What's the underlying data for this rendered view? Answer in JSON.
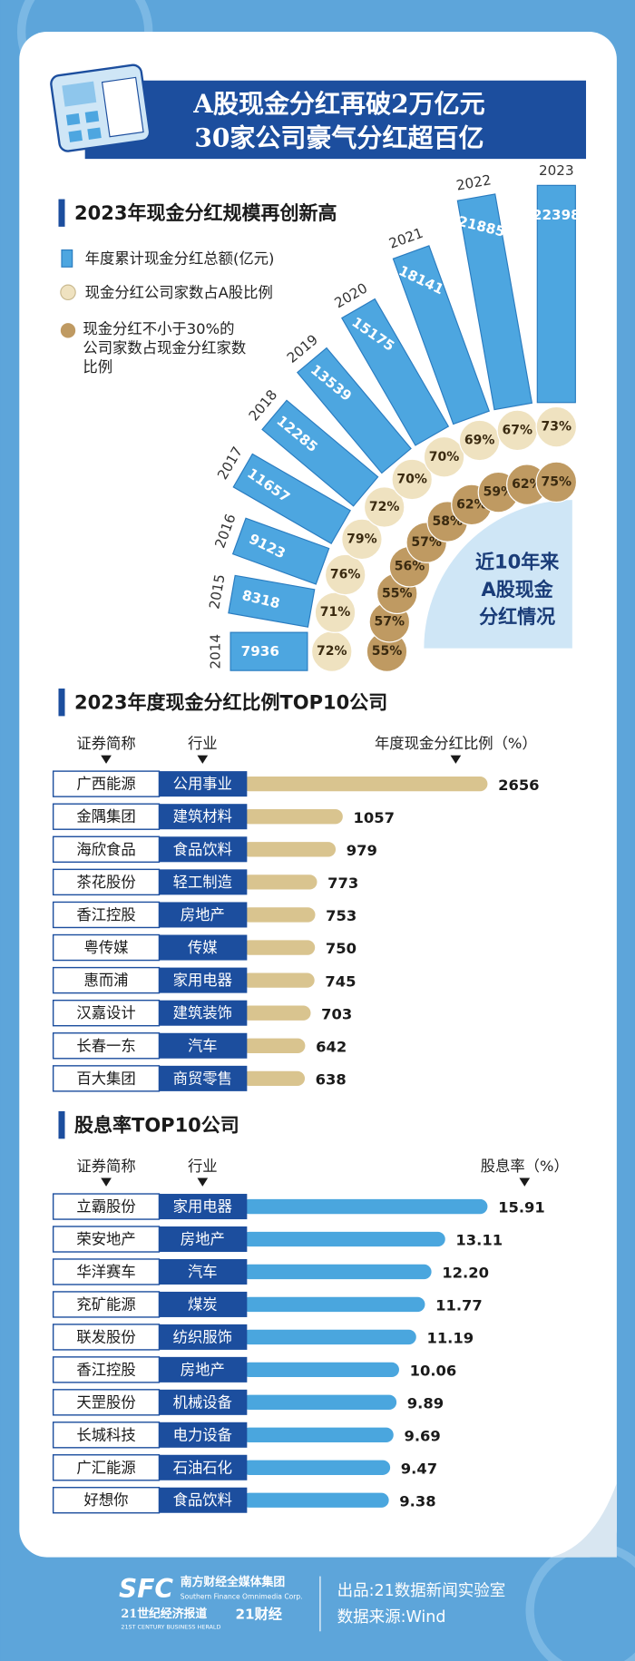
{
  "header": {
    "title_lines": [
      "A股现金分红再破2万亿元",
      "30家公司豪气分红超百亿"
    ]
  },
  "chart_data": [
    {
      "type": "radial-bar",
      "title": "2023年现金分红规模再创新高",
      "categories": [
        "2014",
        "2015",
        "2016",
        "2017",
        "2018",
        "2019",
        "2020",
        "2021",
        "2022",
        "2023"
      ],
      "series": [
        {
          "name": "年度累计现金分红总额(亿元)",
          "color": "#4da6e0",
          "values": [
            7936,
            8318,
            9123,
            11657,
            12285,
            13539,
            15175,
            18141,
            21885,
            22398
          ]
        },
        {
          "name": "现金分红公司家数占A股比例",
          "color": "#efe2c0",
          "values": [
            72,
            71,
            76,
            79,
            72,
            70,
            70,
            69,
            67,
            73
          ],
          "value_labels": [
            "72%",
            "71%",
            "76%",
            "79%",
            "72%",
            "70%",
            "70%",
            "69%",
            "67%",
            "73%"
          ]
        },
        {
          "name": "现金分红不小于30%的公司家数占现金分红家数比例",
          "color": "#bf9a62",
          "values": [
            55,
            57,
            55,
            56,
            57,
            58,
            62,
            59,
            62,
            75
          ],
          "value_labels": [
            "55%",
            "57%",
            "55%",
            "56%",
            "57%",
            "58%",
            "62%",
            "59%",
            "62%",
            "75%"
          ]
        }
      ],
      "annotation_lines": [
        "近10年来",
        "A股现金",
        "分红情况"
      ]
    },
    {
      "type": "bar",
      "title": "2023年度现金分红比例TOP10公司",
      "columns": [
        "证券简称",
        "行业",
        "年度现金分红比例（%）"
      ],
      "categories": [
        "广西能源",
        "金隅集团",
        "海欣食品",
        "茶花股份",
        "香江控股",
        "粤传媒",
        "惠而浦",
        "汉嘉设计",
        "长春一东",
        "百大集团"
      ],
      "industries": [
        "公用事业",
        "建筑材料",
        "食品饮料",
        "轻工制造",
        "房地产",
        "传媒",
        "家用电器",
        "建筑装饰",
        "汽车",
        "商贸零售"
      ],
      "values": [
        2656,
        1057,
        979,
        773,
        753,
        750,
        745,
        703,
        642,
        638
      ],
      "color": "#d9c48f"
    },
    {
      "type": "bar",
      "title": "股息率TOP10公司",
      "columns": [
        "证券简称",
        "行业",
        "股息率（%）"
      ],
      "categories": [
        "立霸股份",
        "荣安地产",
        "华洋赛车",
        "兖矿能源",
        "联发股份",
        "香江控股",
        "天罡股份",
        "长城科技",
        "广汇能源",
        "好想你"
      ],
      "industries": [
        "家用电器",
        "房地产",
        "汽车",
        "煤炭",
        "纺织服饰",
        "房地产",
        "机械设备",
        "电力设备",
        "石油石化",
        "食品饮料"
      ],
      "values": [
        15.91,
        13.11,
        12.2,
        11.77,
        11.19,
        10.06,
        9.89,
        9.69,
        9.47,
        9.38
      ],
      "value_labels": [
        "15.91",
        "13.11",
        "12.20",
        "11.77",
        "11.19",
        "10.06",
        "9.89",
        "9.69",
        "9.47",
        "9.38"
      ],
      "color": "#4aa6de"
    }
  ],
  "footer": {
    "logo": "SFC",
    "publisher": "南方财经全媒体集团",
    "publisher_en": "Southern Finance Omnimedia Corp.",
    "brand1": "21世纪经济报道",
    "brand1_en": "21ST CENTURY BUSINESS HERALD",
    "brand2": "21财经",
    "producer": "出品:21数据新闻实验室",
    "source": "数据来源:Wind"
  }
}
